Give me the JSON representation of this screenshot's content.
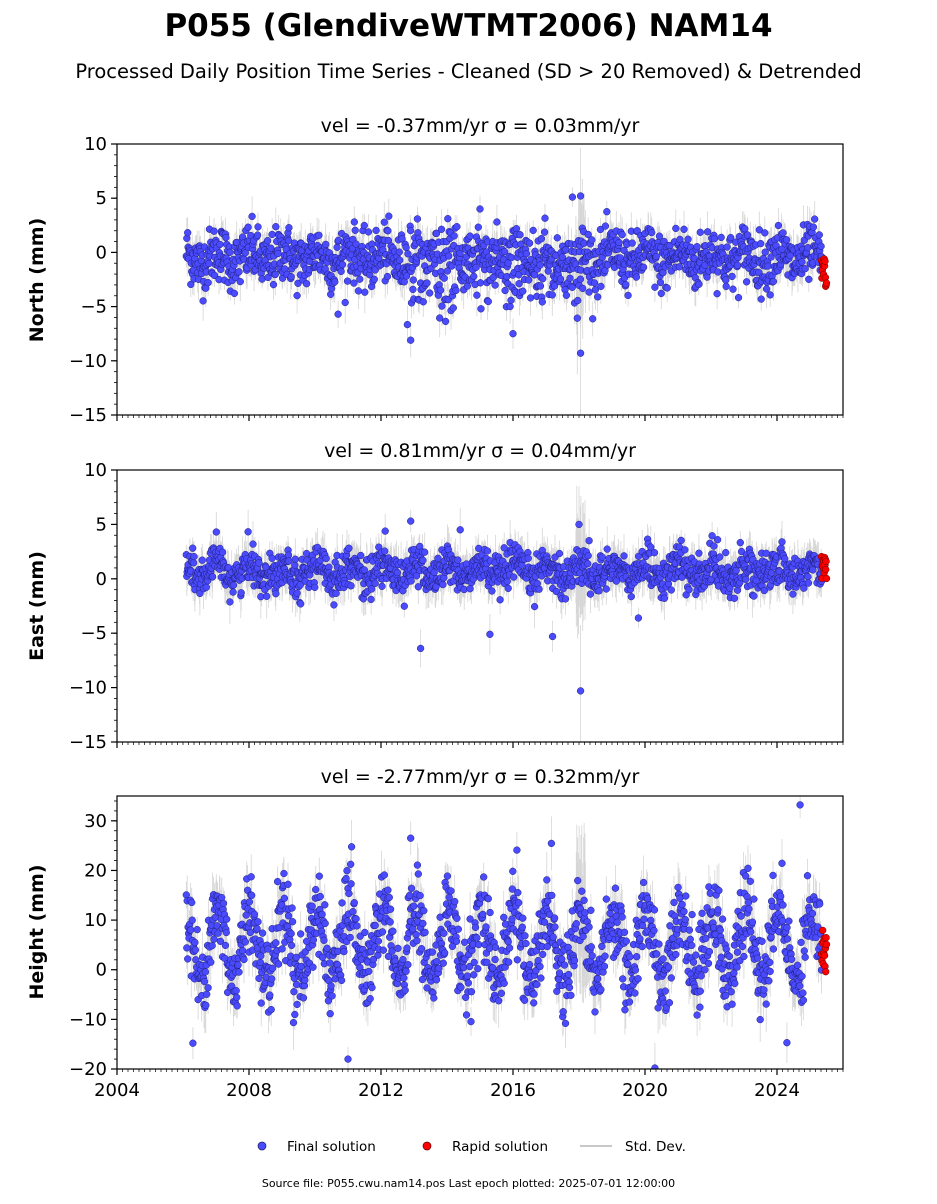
{
  "title": "P055 (GlendiveWTMT2006) NAM14",
  "subtitle": "Processed Daily Position Time Series - Cleaned (SD > 20 Removed) & Detrended",
  "source": "Source file: P055.cwu.nam14.pos  Last epoch plotted: 2025-07-01 12:00:00",
  "legend": {
    "placement": "bottom-center",
    "items": [
      {
        "label": "Final solution",
        "color": "#4a4aff",
        "marker": "circle"
      },
      {
        "label": "Rapid solution",
        "color": "#ff0000",
        "marker": "circle"
      },
      {
        "label": "Std. Dev.",
        "color": "#c8c8c8",
        "marker": "line"
      }
    ]
  },
  "colors": {
    "final": "#4a4aff",
    "rapid": "#ff0000",
    "stddev": "#b8b8b8",
    "stddev_dense": "#555555"
  },
  "chart_data": [
    {
      "type": "scatter",
      "title": "vel = -0.37mm/yr   σ = 0.03mm/yr",
      "ylabel": "North (mm)",
      "xlim": [
        2004.0,
        2026.0
      ],
      "ylim": [
        -15,
        10
      ],
      "yticks": [
        "10",
        "5",
        "0",
        "−5",
        "−10",
        "−15"
      ],
      "ytick_values": [
        10,
        5,
        0,
        -5,
        -10,
        -15
      ],
      "xticks": [
        2004,
        2008,
        2012,
        2016,
        2020,
        2024
      ],
      "show_xtick_labels": false,
      "series": [
        {
          "name": "Final solution",
          "x_range": [
            2006.1,
            2025.35
          ],
          "baseline": -0.5,
          "seasonal_amplitude": 0.6,
          "noise_sd": 1.3,
          "outliers": [
            [
              2012.9,
              -8.1
            ],
            [
              2016.0,
              -7.5
            ],
            [
              2018.05,
              -9.3
            ],
            [
              2018.05,
              5.2
            ],
            [
              2017.8,
              5.1
            ],
            [
              2010.7,
              -5.7
            ],
            [
              2015.0,
              4.0
            ]
          ]
        },
        {
          "name": "Rapid solution",
          "x_range": [
            2025.35,
            2025.5
          ],
          "values_range": [
            -3.2,
            -0.5
          ]
        }
      ],
      "std_dev_typical": 1.4
    },
    {
      "type": "scatter",
      "title": "vel = 0.81mm/yr   σ = 0.04mm/yr",
      "ylabel": "East (mm)",
      "xlim": [
        2004.0,
        2026.0
      ],
      "ylim": [
        -15,
        10
      ],
      "yticks": [
        "10",
        "5",
        "0",
        "−5",
        "−10",
        "−15"
      ],
      "ytick_values": [
        10,
        5,
        0,
        -5,
        -10,
        -15
      ],
      "xticks": [
        2004,
        2008,
        2012,
        2016,
        2020,
        2024
      ],
      "show_xtick_labels": false,
      "series": [
        {
          "name": "Final solution",
          "x_range": [
            2006.1,
            2025.35
          ],
          "baseline": 0.7,
          "seasonal_amplitude": 0.7,
          "noise_sd": 0.9,
          "outliers": [
            [
              2012.9,
              5.3
            ],
            [
              2013.2,
              -6.4
            ],
            [
              2014.4,
              4.5
            ],
            [
              2015.3,
              -5.1
            ],
            [
              2017.2,
              -5.3
            ],
            [
              2018.05,
              -10.3
            ],
            [
              2018.0,
              5.0
            ],
            [
              2019.8,
              -3.6
            ]
          ]
        },
        {
          "name": "Rapid solution",
          "x_range": [
            2025.35,
            2025.5
          ],
          "values_range": [
            0.0,
            2.2
          ]
        }
      ],
      "std_dev_typical": 1.5
    },
    {
      "type": "scatter",
      "title": "vel = -2.77mm/yr   σ = 0.32mm/yr",
      "ylabel": "Height (mm)",
      "xlim": [
        2004.0,
        2026.0
      ],
      "ylim": [
        -20,
        35
      ],
      "yticks": [
        "30",
        "20",
        "10",
        "0",
        "−10",
        "−20"
      ],
      "ytick_values": [
        30,
        20,
        10,
        0,
        -10,
        -20
      ],
      "xticks": [
        2004,
        2008,
        2012,
        2016,
        2020,
        2024
      ],
      "xtick_labels": [
        "2004",
        "2008",
        "2012",
        "2016",
        "2020",
        "2024"
      ],
      "show_xtick_labels": true,
      "series": [
        {
          "name": "Final solution",
          "x_range": [
            2006.1,
            2025.35
          ],
          "baseline": 5.0,
          "seasonal_amplitude": 7.0,
          "noise_sd": 4.0,
          "outliers": [
            [
              2024.7,
              33.2
            ],
            [
              2011.0,
              -18.0
            ],
            [
              2006.3,
              -14.8
            ],
            [
              2024.3,
              -14.7
            ],
            [
              2012.9,
              26.5
            ],
            [
              2020.3,
              -19.8
            ]
          ]
        },
        {
          "name": "Rapid solution",
          "x_range": [
            2025.35,
            2025.5
          ],
          "values_range": [
            -0.5,
            8.0
          ]
        }
      ],
      "std_dev_typical": 4.0
    }
  ]
}
